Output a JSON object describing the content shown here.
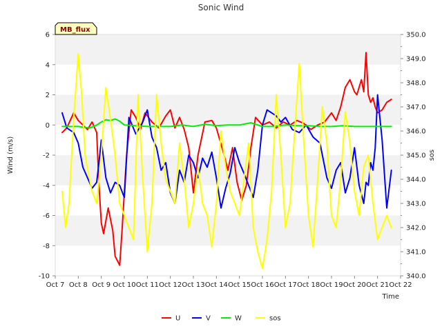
{
  "chart_data": {
    "type": "line",
    "title": "Sonic Wind",
    "site_label": "MB_flux",
    "xlabel": "Time",
    "ylabel_left": "Wind (m/s)",
    "ylabel_right": "sos",
    "x_tick_labels": [
      "Oct 7",
      "Oct 8",
      "Oct 9",
      "Oct 10",
      "Oct 11",
      "Oct 12",
      "Oct 13",
      "Oct 14",
      "Oct 15",
      "Oct 16",
      "Oct 17",
      "Oct 18",
      "Oct 19",
      "Oct 20",
      "Oct 21",
      "Oct 22"
    ],
    "x_unit": "days since Oct 7",
    "xlim": [
      0,
      15
    ],
    "ylim_left": [
      -10,
      6
    ],
    "y_ticks_left": [
      -10,
      -8,
      -6,
      -4,
      -2,
      0,
      2,
      4,
      6
    ],
    "ylim_right": [
      340.0,
      350.0
    ],
    "y_ticks_right": [
      "340.0",
      "341.0",
      "342.0",
      "343.0",
      "344.0",
      "345.0",
      "346.0",
      "347.0",
      "348.0",
      "349.0",
      "350.0"
    ],
    "legend": {
      "position": "bottom-center",
      "entries": [
        "U",
        "V",
        "W",
        "sos"
      ]
    },
    "series": [
      {
        "name": "U",
        "axis": "left",
        "color": "#ff0000",
        "x": [
          0.3,
          0.5,
          0.8,
          1.0,
          1.2,
          1.4,
          1.6,
          1.8,
          1.9,
          2.0,
          2.1,
          2.3,
          2.5,
          2.6,
          2.8,
          2.9,
          3.0,
          3.1,
          3.3,
          3.5,
          3.7,
          3.9,
          4.2,
          4.5,
          4.8,
          5.0,
          5.2,
          5.4,
          5.6,
          5.8,
          6.0,
          6.2,
          6.5,
          6.8,
          7.0,
          7.3,
          7.5,
          7.7,
          7.9,
          8.1,
          8.3,
          8.5,
          8.7,
          9.0,
          9.3,
          9.6,
          9.9,
          10.2,
          10.5,
          10.8,
          11.1,
          11.4,
          11.7,
          12.0,
          12.2,
          12.4,
          12.6,
          12.8,
          13.0,
          13.1,
          13.2,
          13.3,
          13.4,
          13.5,
          13.6,
          13.7,
          13.8,
          13.9,
          14.0,
          14.2,
          14.4,
          14.6
        ],
        "values": [
          -0.5,
          -0.2,
          0.8,
          0.3,
          0.0,
          -0.3,
          0.2,
          -0.5,
          -4.0,
          -6.5,
          -7.2,
          -5.5,
          -7.0,
          -8.7,
          -9.3,
          -7.0,
          -4.5,
          -2.0,
          1.0,
          0.5,
          -0.3,
          0.8,
          0.2,
          -0.2,
          0.6,
          1.0,
          -0.2,
          0.5,
          -0.3,
          -1.5,
          -4.5,
          -2.0,
          0.2,
          0.3,
          -0.2,
          -1.8,
          -3.0,
          -1.5,
          -3.8,
          -5.0,
          -4.0,
          -1.5,
          0.5,
          0.0,
          0.2,
          -0.2,
          0.2,
          0.0,
          0.3,
          0.1,
          -0.3,
          0.0,
          0.2,
          0.8,
          0.3,
          1.2,
          2.5,
          3.0,
          2.2,
          2.0,
          2.5,
          3.0,
          2.2,
          4.8,
          2.0,
          1.5,
          1.8,
          1.2,
          0.8,
          1.0,
          1.5,
          1.7
        ]
      },
      {
        "name": "V",
        "axis": "left",
        "color": "#0000ff",
        "x": [
          0.3,
          0.5,
          0.8,
          1.0,
          1.2,
          1.4,
          1.6,
          1.8,
          1.9,
          2.0,
          2.2,
          2.4,
          2.6,
          2.8,
          3.0,
          3.2,
          3.5,
          3.8,
          4.0,
          4.2,
          4.4,
          4.6,
          4.8,
          5.0,
          5.2,
          5.4,
          5.6,
          5.8,
          6.0,
          6.2,
          6.4,
          6.6,
          6.8,
          7.0,
          7.2,
          7.4,
          7.6,
          7.8,
          8.0,
          8.2,
          8.4,
          8.6,
          8.8,
          9.0,
          9.2,
          9.4,
          9.6,
          9.8,
          10.0,
          10.3,
          10.6,
          10.9,
          11.2,
          11.5,
          11.8,
          12.0,
          12.2,
          12.4,
          12.6,
          12.8,
          13.0,
          13.2,
          13.4,
          13.5,
          13.6,
          13.7,
          13.8,
          13.9,
          14.0,
          14.2,
          14.4,
          14.6
        ],
        "values": [
          0.8,
          -0.2,
          -0.5,
          -1.2,
          -2.8,
          -3.5,
          -4.2,
          -3.8,
          -2.5,
          -1.0,
          -3.5,
          -4.5,
          -3.8,
          -4.0,
          -4.8,
          0.5,
          -0.6,
          0.2,
          1.0,
          -0.8,
          -1.5,
          -3.0,
          -2.5,
          -4.5,
          -5.2,
          -3.0,
          -3.8,
          -2.0,
          -2.5,
          -3.5,
          -2.2,
          -2.8,
          -1.8,
          -3.5,
          -5.5,
          -4.2,
          -3.2,
          -1.5,
          -2.5,
          -3.2,
          -4.0,
          -4.8,
          -3.0,
          0.0,
          1.0,
          0.8,
          0.6,
          0.2,
          0.5,
          -0.3,
          -0.5,
          0.0,
          -0.8,
          -1.2,
          -3.5,
          -4.2,
          -3.0,
          -2.5,
          -4.5,
          -3.5,
          -1.5,
          -4.0,
          -5.2,
          -3.8,
          -4.0,
          -2.5,
          -3.0,
          -1.5,
          2.0,
          -1.0,
          -5.5,
          -3.0
        ]
      },
      {
        "name": "W",
        "axis": "left",
        "color": "#00ee00",
        "x": [
          0.3,
          1.0,
          1.5,
          1.8,
          2.0,
          2.2,
          2.4,
          2.6,
          2.8,
          3.0,
          4.0,
          5.0,
          5.5,
          6.0,
          6.5,
          7.0,
          7.5,
          8.0,
          8.5,
          9.0,
          9.5,
          10.0,
          10.5,
          11.0,
          11.5,
          12.0,
          12.5,
          13.0,
          13.5,
          14.0,
          14.5,
          14.6
        ],
        "values": [
          -0.1,
          -0.1,
          -0.2,
          0.0,
          0.2,
          0.35,
          0.3,
          0.4,
          0.25,
          0.0,
          -0.1,
          -0.1,
          0.0,
          -0.1,
          0.05,
          -0.05,
          0.0,
          0.0,
          0.15,
          -0.1,
          -0.1,
          0.0,
          -0.05,
          -0.05,
          -0.1,
          -0.1,
          -0.05,
          -0.1,
          -0.1,
          -0.1,
          -0.1,
          -0.1
        ]
      },
      {
        "name": "sos",
        "axis": "right",
        "color": "#ffff00",
        "x": [
          0.3,
          0.45,
          0.6,
          0.8,
          1.0,
          1.15,
          1.3,
          1.45,
          1.6,
          1.8,
          2.0,
          2.2,
          2.4,
          2.6,
          2.8,
          3.0,
          3.2,
          3.4,
          3.6,
          3.8,
          4.0,
          4.2,
          4.4,
          4.6,
          4.8,
          5.0,
          5.2,
          5.4,
          5.6,
          5.8,
          6.0,
          6.2,
          6.4,
          6.6,
          6.8,
          7.0,
          7.2,
          7.4,
          7.6,
          7.8,
          8.0,
          8.2,
          8.4,
          8.6,
          8.8,
          9.0,
          9.2,
          9.4,
          9.6,
          9.8,
          10.0,
          10.2,
          10.4,
          10.6,
          10.8,
          11.0,
          11.2,
          11.4,
          11.6,
          11.8,
          12.0,
          12.2,
          12.4,
          12.6,
          12.8,
          13.0,
          13.2,
          13.4,
          13.6,
          13.8,
          14.0,
          14.2,
          14.4,
          14.6
        ],
        "values": [
          343.5,
          342.0,
          343.0,
          346.5,
          349.2,
          347.5,
          345.0,
          344.2,
          343.5,
          343.0,
          345.0,
          347.8,
          346.5,
          345.0,
          343.0,
          342.5,
          342.0,
          341.5,
          347.5,
          344.0,
          341.0,
          343.0,
          347.5,
          345.5,
          344.0,
          343.5,
          343.0,
          345.5,
          344.0,
          342.0,
          343.0,
          344.5,
          343.0,
          342.5,
          341.2,
          343.0,
          346.0,
          344.5,
          343.5,
          343.0,
          342.5,
          344.0,
          345.5,
          342.0,
          341.0,
          340.3,
          341.5,
          343.5,
          347.5,
          345.0,
          342.0,
          343.0,
          346.0,
          348.8,
          345.5,
          342.5,
          341.2,
          344.0,
          347.0,
          345.5,
          342.5,
          342.0,
          344.0,
          346.8,
          345.5,
          343.5,
          342.5,
          344.5,
          345.0,
          343.0,
          341.5,
          342.0,
          342.5,
          342.0
        ]
      }
    ]
  }
}
